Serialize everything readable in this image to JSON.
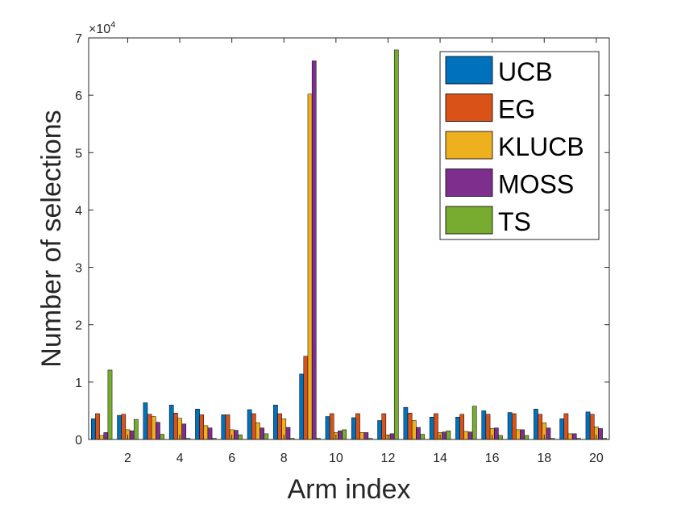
{
  "chart_data": {
    "type": "bar",
    "title": "",
    "xlabel": "Arm index",
    "ylabel": "Number of selections",
    "y_multiplier_label": "×10",
    "y_multiplier_exponent": "4",
    "y_multiplier": 10000,
    "xlim": [
      0.5,
      20.5
    ],
    "ylim": [
      0,
      7
    ],
    "yticks": [
      0,
      1,
      2,
      3,
      4,
      5,
      6,
      7
    ],
    "xticks": [
      2,
      4,
      6,
      8,
      10,
      12,
      14,
      16,
      18,
      20
    ],
    "grid": false,
    "legend_position": "top-right",
    "categories": [
      1,
      2,
      3,
      4,
      5,
      6,
      7,
      8,
      9,
      10,
      11,
      12,
      13,
      14,
      15,
      16,
      17,
      18,
      19,
      20
    ],
    "series": [
      {
        "name": "UCB",
        "color": "#0072BD",
        "values": [
          0.36,
          0.42,
          0.64,
          0.6,
          0.53,
          0.43,
          0.52,
          0.6,
          1.14,
          0.4,
          0.38,
          0.33,
          0.56,
          0.39,
          0.39,
          0.5,
          0.47,
          0.53,
          0.36,
          0.48
        ]
      },
      {
        "name": "EG",
        "color": "#D95319",
        "values": [
          0.45,
          0.44,
          0.44,
          0.46,
          0.43,
          0.43,
          0.45,
          0.45,
          1.45,
          0.45,
          0.45,
          0.45,
          0.46,
          0.45,
          0.44,
          0.44,
          0.45,
          0.44,
          0.45,
          0.44
        ]
      },
      {
        "name": "KLUCB",
        "color": "#EDB120",
        "values": [
          0.07,
          0.17,
          0.4,
          0.37,
          0.24,
          0.17,
          0.29,
          0.36,
          6.02,
          0.12,
          0.12,
          0.08,
          0.33,
          0.12,
          0.14,
          0.19,
          0.17,
          0.29,
          0.1,
          0.22
        ]
      },
      {
        "name": "MOSS",
        "color": "#7E2F8E",
        "values": [
          0.12,
          0.15,
          0.3,
          0.27,
          0.2,
          0.16,
          0.2,
          0.21,
          6.6,
          0.15,
          0.12,
          0.1,
          0.21,
          0.13,
          0.13,
          0.2,
          0.17,
          0.2,
          0.1,
          0.19
        ]
      },
      {
        "name": "TS",
        "color": "#77AC30",
        "values": [
          1.21,
          0.35,
          0.09,
          0.02,
          0.02,
          0.08,
          0.1,
          0.02,
          0.02,
          0.17,
          0.02,
          6.79,
          0.09,
          0.15,
          0.58,
          0.07,
          0.07,
          0.02,
          0.02,
          0.02
        ]
      }
    ]
  }
}
